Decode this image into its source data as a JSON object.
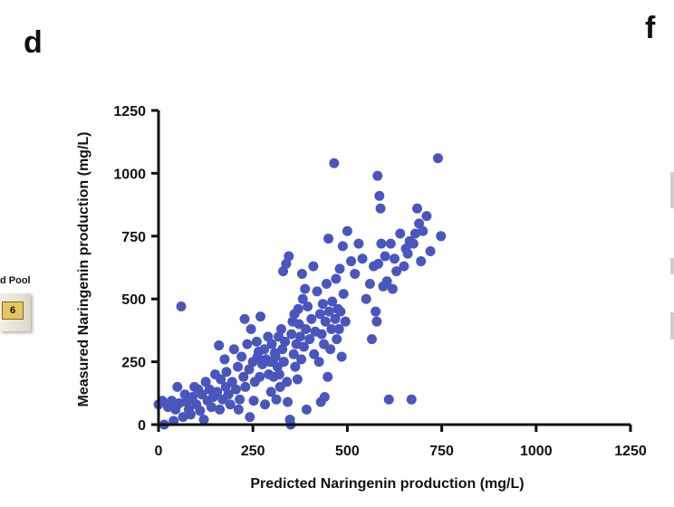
{
  "panels": {
    "main_letter": "d",
    "next_letter": "f"
  },
  "side_fragment": {
    "label": "d Pool",
    "tile": "6"
  },
  "chart_data": {
    "type": "scatter",
    "xlabel": "Predicted Naringenin production (mg/L)",
    "ylabel": "Measured Naringenin production (mg/L)",
    "xlim": [
      0,
      1250
    ],
    "ylim": [
      0,
      1250
    ],
    "xticks": [
      0,
      250,
      500,
      750,
      1000,
      1250
    ],
    "yticks": [
      0,
      250,
      500,
      750,
      1000,
      1250
    ],
    "grid": false,
    "marker_color": "#4a55be",
    "points": [
      [
        0,
        80
      ],
      [
        10,
        95
      ],
      [
        15,
        0
      ],
      [
        25,
        70
      ],
      [
        35,
        95
      ],
      [
        40,
        15
      ],
      [
        45,
        60
      ],
      [
        50,
        150
      ],
      [
        55,
        85
      ],
      [
        60,
        470
      ],
      [
        65,
        30
      ],
      [
        70,
        120
      ],
      [
        75,
        90
      ],
      [
        80,
        60
      ],
      [
        85,
        40
      ],
      [
        90,
        110
      ],
      [
        95,
        150
      ],
      [
        100,
        80
      ],
      [
        105,
        140
      ],
      [
        110,
        55
      ],
      [
        115,
        120
      ],
      [
        120,
        20
      ],
      [
        125,
        170
      ],
      [
        130,
        95
      ],
      [
        135,
        140
      ],
      [
        140,
        70
      ],
      [
        145,
        110
      ],
      [
        150,
        200
      ],
      [
        155,
        130
      ],
      [
        160,
        315
      ],
      [
        162,
        60
      ],
      [
        165,
        180
      ],
      [
        170,
        100
      ],
      [
        175,
        260
      ],
      [
        178,
        150
      ],
      [
        180,
        210
      ],
      [
        185,
        120
      ],
      [
        190,
        80
      ],
      [
        195,
        170
      ],
      [
        200,
        300
      ],
      [
        205,
        140
      ],
      [
        210,
        230
      ],
      [
        212,
        60
      ],
      [
        215,
        100
      ],
      [
        220,
        270
      ],
      [
        225,
        190
      ],
      [
        228,
        420
      ],
      [
        230,
        150
      ],
      [
        235,
        320
      ],
      [
        240,
        220
      ],
      [
        242,
        30
      ],
      [
        245,
        380
      ],
      [
        250,
        250
      ],
      [
        252,
        95
      ],
      [
        255,
        170
      ],
      [
        260,
        330
      ],
      [
        262,
        270
      ],
      [
        265,
        290
      ],
      [
        268,
        190
      ],
      [
        270,
        430
      ],
      [
        275,
        240
      ],
      [
        280,
        300
      ],
      [
        282,
        80
      ],
      [
        285,
        260
      ],
      [
        290,
        350
      ],
      [
        292,
        200
      ],
      [
        295,
        250
      ],
      [
        298,
        130
      ],
      [
        300,
        320
      ],
      [
        302,
        250
      ],
      [
        305,
        190
      ],
      [
        308,
        285
      ],
      [
        310,
        270
      ],
      [
        312,
        100
      ],
      [
        315,
        230
      ],
      [
        318,
        350
      ],
      [
        320,
        200
      ],
      [
        322,
        150
      ],
      [
        325,
        380
      ],
      [
        328,
        300
      ],
      [
        330,
        610
      ],
      [
        332,
        250
      ],
      [
        335,
        330
      ],
      [
        338,
        640
      ],
      [
        340,
        170
      ],
      [
        342,
        90
      ],
      [
        345,
        670
      ],
      [
        348,
        20
      ],
      [
        350,
        0
      ],
      [
        352,
        360
      ],
      [
        355,
        410
      ],
      [
        358,
        280
      ],
      [
        360,
        440
      ],
      [
        362,
        230
      ],
      [
        365,
        320
      ],
      [
        368,
        180
      ],
      [
        370,
        460
      ],
      [
        372,
        400
      ],
      [
        375,
        350
      ],
      [
        378,
        260
      ],
      [
        380,
        600
      ],
      [
        382,
        500
      ],
      [
        385,
        310
      ],
      [
        388,
        540
      ],
      [
        390,
        380
      ],
      [
        392,
        60
      ],
      [
        395,
        470
      ],
      [
        400,
        340
      ],
      [
        405,
        420
      ],
      [
        410,
        630
      ],
      [
        412,
        280
      ],
      [
        415,
        370
      ],
      [
        420,
        530
      ],
      [
        425,
        250
      ],
      [
        428,
        440
      ],
      [
        430,
        90
      ],
      [
        432,
        360
      ],
      [
        435,
        480
      ],
      [
        438,
        320
      ],
      [
        440,
        110
      ],
      [
        442,
        410
      ],
      [
        445,
        560
      ],
      [
        448,
        190
      ],
      [
        450,
        740
      ],
      [
        452,
        450
      ],
      [
        455,
        300
      ],
      [
        458,
        380
      ],
      [
        460,
        490
      ],
      [
        465,
        1040
      ],
      [
        468,
        420
      ],
      [
        470,
        580
      ],
      [
        472,
        340
      ],
      [
        475,
        460
      ],
      [
        478,
        380
      ],
      [
        480,
        620
      ],
      [
        482,
        450
      ],
      [
        485,
        270
      ],
      [
        488,
        710
      ],
      [
        490,
        520
      ],
      [
        495,
        410
      ],
      [
        500,
        770
      ],
      [
        510,
        650
      ],
      [
        520,
        600
      ],
      [
        530,
        720
      ],
      [
        540,
        660
      ],
      [
        550,
        500
      ],
      [
        560,
        560
      ],
      [
        565,
        340
      ],
      [
        570,
        630
      ],
      [
        575,
        450
      ],
      [
        578,
        410
      ],
      [
        580,
        990
      ],
      [
        582,
        640
      ],
      [
        585,
        910
      ],
      [
        588,
        860
      ],
      [
        590,
        720
      ],
      [
        595,
        550
      ],
      [
        600,
        670
      ],
      [
        605,
        570
      ],
      [
        610,
        100
      ],
      [
        615,
        720
      ],
      [
        620,
        540
      ],
      [
        625,
        660
      ],
      [
        630,
        610
      ],
      [
        640,
        760
      ],
      [
        650,
        630
      ],
      [
        655,
        700
      ],
      [
        660,
        680
      ],
      [
        665,
        730
      ],
      [
        670,
        100
      ],
      [
        675,
        720
      ],
      [
        680,
        760
      ],
      [
        685,
        860
      ],
      [
        690,
        800
      ],
      [
        695,
        650
      ],
      [
        700,
        770
      ],
      [
        710,
        830
      ],
      [
        720,
        690
      ],
      [
        740,
        1060
      ],
      [
        748,
        750
      ]
    ]
  }
}
